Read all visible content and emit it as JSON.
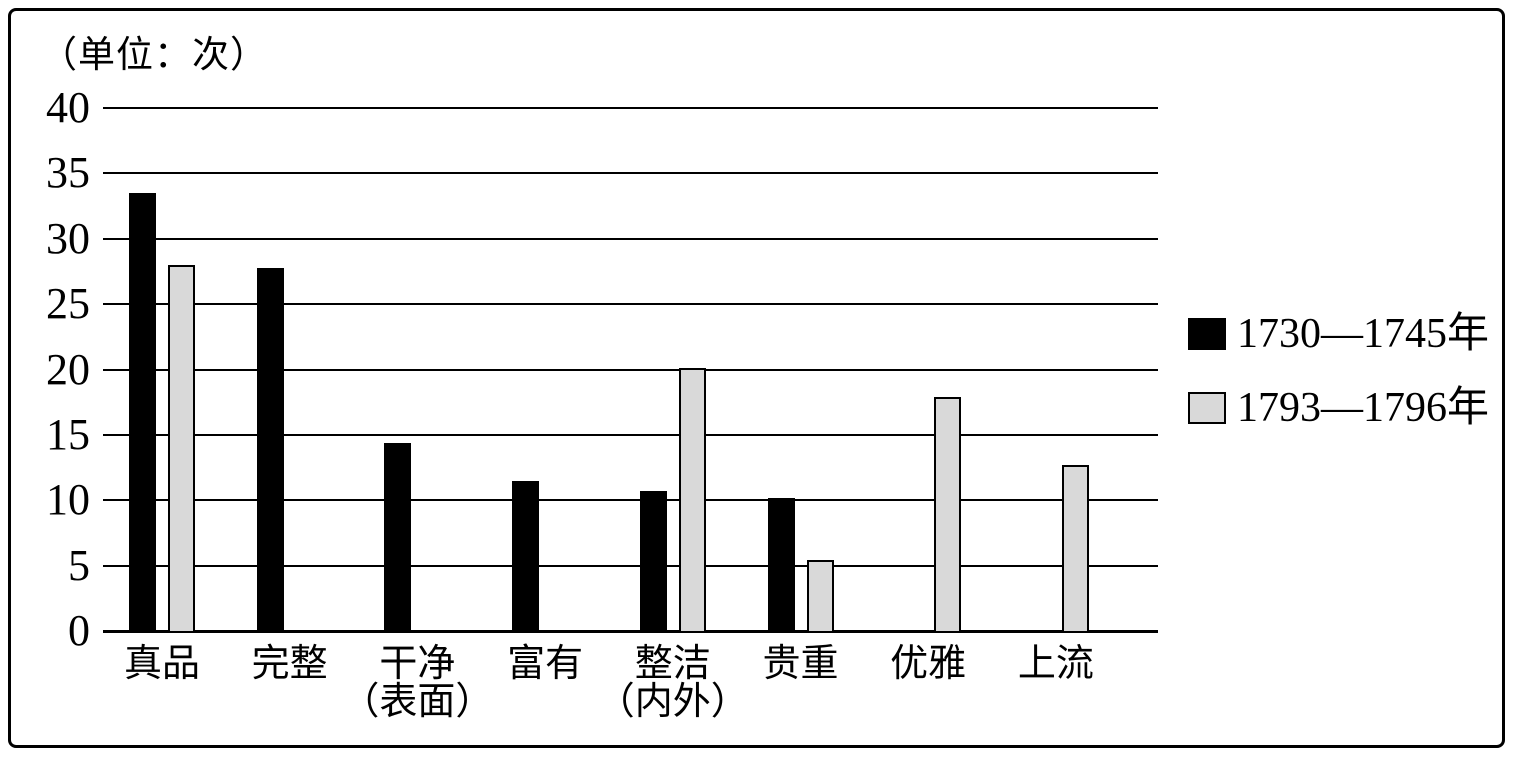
{
  "chart_data": {
    "type": "bar",
    "title": "",
    "unit_label": "（单位：次）",
    "categories": [
      {
        "label": "真品",
        "sublabel": ""
      },
      {
        "label": "完整",
        "sublabel": ""
      },
      {
        "label": "干净",
        "sublabel": "（表面）"
      },
      {
        "label": "富有",
        "sublabel": ""
      },
      {
        "label": "整洁",
        "sublabel": "（内外）"
      },
      {
        "label": "贵重",
        "sublabel": ""
      },
      {
        "label": "优雅",
        "sublabel": ""
      },
      {
        "label": "上流",
        "sublabel": ""
      }
    ],
    "series": [
      {
        "name": "1730—1745年",
        "color": "#000000",
        "values": [
          33.5,
          27.8,
          14.4,
          11.5,
          10.7,
          10.2,
          null,
          null
        ]
      },
      {
        "name": "1793—1796年",
        "color": "#d9d9d9",
        "values": [
          28,
          null,
          null,
          null,
          20.1,
          5.4,
          17.9,
          12.7
        ]
      }
    ],
    "ylim": [
      0,
      40
    ],
    "yticks": [
      0,
      5,
      10,
      15,
      20,
      25,
      30,
      35,
      40
    ],
    "ylabel": "次",
    "xlabel": "",
    "grid": "horizontal",
    "legend_position": "right"
  }
}
